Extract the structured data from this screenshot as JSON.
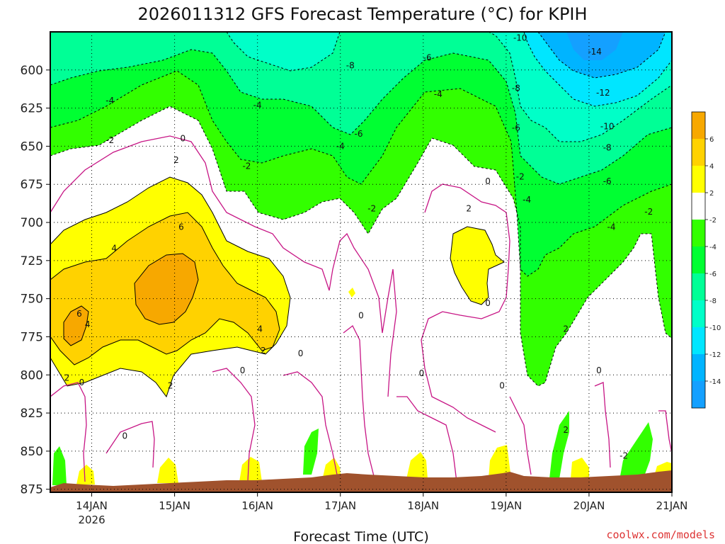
{
  "chart_data": {
    "type": "heatmap",
    "title": "2026011312 GFS Forecast Temperature (°C) for KPIH",
    "xlabel": "Forecast Time (UTC)",
    "x_ticks": [
      "14JAN",
      "15JAN",
      "16JAN",
      "17JAN",
      "18JAN",
      "19JAN",
      "20JAN",
      "21JAN"
    ],
    "x_year": "2026",
    "y_ticks": [
      "600",
      "625",
      "650",
      "675",
      "700",
      "725",
      "750",
      "775",
      "800",
      "825",
      "850",
      "875"
    ],
    "ylim_hPa": [
      575,
      877
    ],
    "xlim_day": [
      13.5,
      21.0
    ],
    "grid": true,
    "colorbar": {
      "labels": [
        "6",
        "4",
        "2",
        "-2",
        "-4",
        "-6",
        "-8",
        "-10",
        "-12",
        "-14"
      ],
      "colors": [
        "#f7a800",
        "#ffd200",
        "#ffff00",
        "#ffffff",
        "#32ff00",
        "#00ff32",
        "#00ff96",
        "#00ffc8",
        "#00e6ff",
        "#00b4ff",
        "#14a0ff"
      ]
    },
    "contour_labels": [
      {
        "text": "-10",
        "day": 19.17,
        "hpa": 579
      },
      {
        "text": "-14",
        "day": 20.07,
        "hpa": 588
      },
      {
        "text": "-8",
        "day": 17.12,
        "hpa": 597
      },
      {
        "text": "-6",
        "day": 18.05,
        "hpa": 592
      },
      {
        "text": "-8",
        "day": 19.12,
        "hpa": 612
      },
      {
        "text": "-12",
        "day": 20.17,
        "hpa": 615
      },
      {
        "text": "-4",
        "day": 14.22,
        "hpa": 620
      },
      {
        "text": "-4",
        "day": 16.0,
        "hpa": 623
      },
      {
        "text": "-4",
        "day": 18.18,
        "hpa": 616
      },
      {
        "text": "-6",
        "day": 17.22,
        "hpa": 642
      },
      {
        "text": "-6",
        "day": 19.12,
        "hpa": 638
      },
      {
        "text": "-10",
        "day": 20.22,
        "hpa": 637
      },
      {
        "text": "-2",
        "day": 14.22,
        "hpa": 646
      },
      {
        "text": "0",
        "day": 15.1,
        "hpa": 645
      },
      {
        "text": "-4",
        "day": 17.0,
        "hpa": 650
      },
      {
        "text": "-8",
        "day": 20.22,
        "hpa": 651
      },
      {
        "text": "2",
        "day": 15.02,
        "hpa": 659
      },
      {
        "text": "-2",
        "day": 15.87,
        "hpa": 663
      },
      {
        "text": "-2",
        "day": 19.17,
        "hpa": 670
      },
      {
        "text": "-6",
        "day": 20.22,
        "hpa": 673
      },
      {
        "text": "0",
        "day": 18.78,
        "hpa": 673
      },
      {
        "text": "-4",
        "day": 19.25,
        "hpa": 685
      },
      {
        "text": "-2",
        "day": 17.38,
        "hpa": 691
      },
      {
        "text": "2",
        "day": 18.55,
        "hpa": 691
      },
      {
        "text": "-2",
        "day": 20.72,
        "hpa": 693
      },
      {
        "text": "-4",
        "day": 20.27,
        "hpa": 703
      },
      {
        "text": "6",
        "day": 15.08,
        "hpa": 703
      },
      {
        "text": "4",
        "day": 14.27,
        "hpa": 717
      },
      {
        "text": "6",
        "day": 13.85,
        "hpa": 760
      },
      {
        "text": "0",
        "day": 17.25,
        "hpa": 761
      },
      {
        "text": "0",
        "day": 18.78,
        "hpa": 753
      },
      {
        "text": "4",
        "day": 13.95,
        "hpa": 767
      },
      {
        "text": "2",
        "day": 19.72,
        "hpa": 770
      },
      {
        "text": "4",
        "day": 16.03,
        "hpa": 770
      },
      {
        "text": "2",
        "day": 16.07,
        "hpa": 784
      },
      {
        "text": "0",
        "day": 16.52,
        "hpa": 786
      },
      {
        "text": "0",
        "day": 15.82,
        "hpa": 797
      },
      {
        "text": "0",
        "day": 17.98,
        "hpa": 799
      },
      {
        "text": "0",
        "day": 20.12,
        "hpa": 797
      },
      {
        "text": "2",
        "day": 13.7,
        "hpa": 802
      },
      {
        "text": "0",
        "day": 13.88,
        "hpa": 805
      },
      {
        "text": "2",
        "day": 14.95,
        "hpa": 807
      },
      {
        "text": "0",
        "day": 18.95,
        "hpa": 807
      },
      {
        "text": "2",
        "day": 19.72,
        "hpa": 836
      },
      {
        "text": "0",
        "day": 14.4,
        "hpa": 840
      },
      {
        "text": "-2",
        "day": 20.42,
        "hpa": 853
      }
    ]
  },
  "footer": {
    "credit": "coolwx.com/models"
  }
}
